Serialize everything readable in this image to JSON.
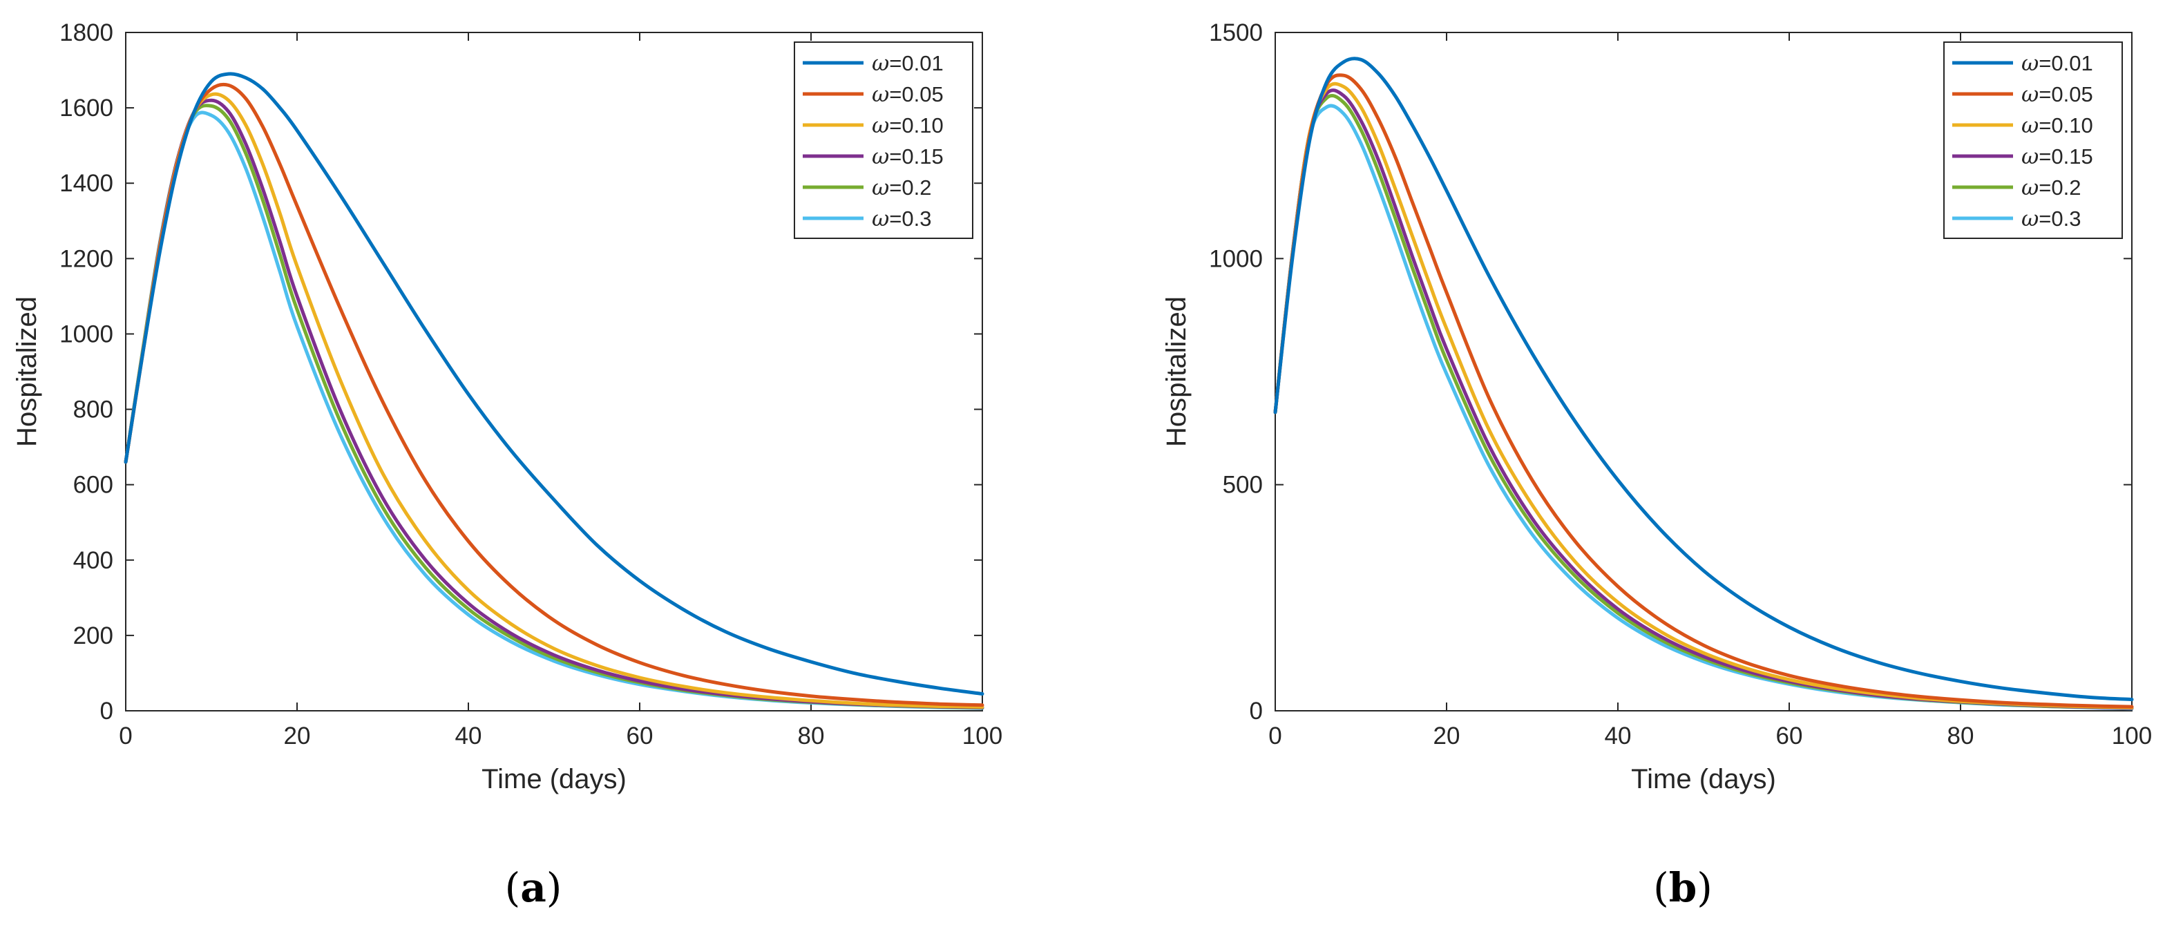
{
  "chart_data": [
    {
      "type": "line",
      "panel_label": "a",
      "xlabel": "Time (days)",
      "ylabel": "Hospitalized",
      "xlim": [
        0,
        100
      ],
      "ylim": [
        0,
        1800
      ],
      "xticks": [
        0,
        20,
        40,
        60,
        80,
        100
      ],
      "yticks": [
        0,
        200,
        400,
        600,
        800,
        1000,
        1200,
        1400,
        1600,
        1800
      ],
      "legend_position": "top-right",
      "x": [
        0,
        2,
        4,
        6,
        8,
        10,
        12,
        14,
        16,
        18,
        20,
        25,
        30,
        35,
        40,
        45,
        50,
        55,
        60,
        65,
        70,
        75,
        80,
        85,
        90,
        95,
        100
      ],
      "series": [
        {
          "name": "=0.01",
          "symbol": "ω",
          "color": "#0072BD",
          "values": [
            660,
            950,
            1220,
            1440,
            1590,
            1670,
            1690,
            1680,
            1650,
            1600,
            1540,
            1370,
            1190,
            1010,
            840,
            690,
            560,
            440,
            345,
            270,
            210,
            165,
            130,
            100,
            78,
            60,
            45
          ]
        },
        {
          "name": "=0.05",
          "symbol": "ω",
          "color": "#D95319",
          "values": [
            660,
            950,
            1230,
            1450,
            1590,
            1650,
            1660,
            1625,
            1550,
            1450,
            1340,
            1070,
            820,
            610,
            450,
            330,
            240,
            175,
            128,
            94,
            70,
            52,
            39,
            30,
            23,
            18,
            15
          ]
        },
        {
          "name": "=0.10",
          "symbol": "ω",
          "color": "#EDB120",
          "values": [
            660,
            955,
            1235,
            1455,
            1590,
            1635,
            1620,
            1555,
            1450,
            1320,
            1180,
            880,
            630,
            450,
            320,
            230,
            165,
            120,
            88,
            65,
            48,
            36,
            27,
            20,
            15,
            12,
            10
          ]
        },
        {
          "name": "=0.15",
          "symbol": "ω",
          "color": "#7E2F8E",
          "values": [
            660,
            955,
            1240,
            1460,
            1590,
            1620,
            1590,
            1505,
            1385,
            1245,
            1100,
            800,
            565,
            400,
            285,
            205,
            148,
            108,
            79,
            58,
            43,
            32,
            24,
            18,
            14,
            11,
            9
          ]
        },
        {
          "name": "=0.2",
          "symbol": "ω",
          "color": "#77AC30",
          "values": [
            660,
            958,
            1242,
            1460,
            1585,
            1605,
            1570,
            1480,
            1355,
            1210,
            1065,
            770,
            540,
            380,
            270,
            195,
            140,
            102,
            75,
            55,
            41,
            30,
            23,
            17,
            13,
            10,
            8
          ]
        },
        {
          "name": "=0.3",
          "symbol": "ω",
          "color": "#4DBEEE",
          "values": [
            660,
            960,
            1245,
            1460,
            1575,
            1580,
            1535,
            1440,
            1310,
            1165,
            1020,
            735,
            515,
            360,
            255,
            183,
            132,
            96,
            70,
            52,
            38,
            28,
            21,
            16,
            12,
            9,
            7
          ]
        }
      ]
    },
    {
      "type": "line",
      "panel_label": "b",
      "xlabel": "Time (days)",
      "ylabel": "Hospitalized",
      "xlim": [
        0,
        100
      ],
      "ylim": [
        0,
        1500
      ],
      "xticks": [
        0,
        20,
        40,
        60,
        80,
        100
      ],
      "yticks": [
        0,
        500,
        1000,
        1500
      ],
      "legend_position": "top-right",
      "x": [
        0,
        2,
        4,
        6,
        8,
        10,
        12,
        14,
        16,
        18,
        20,
        25,
        30,
        35,
        40,
        45,
        50,
        55,
        60,
        65,
        70,
        75,
        80,
        85,
        90,
        95,
        100
      ],
      "series": [
        {
          "name": "=0.01",
          "symbol": "ω",
          "color": "#0072BD",
          "values": [
            660,
            1000,
            1260,
            1390,
            1435,
            1440,
            1410,
            1360,
            1295,
            1225,
            1150,
            960,
            790,
            640,
            510,
            400,
            310,
            240,
            185,
            142,
            109,
            84,
            65,
            50,
            39,
            30,
            25
          ]
        },
        {
          "name": "=0.05",
          "symbol": "ω",
          "color": "#D95319",
          "values": [
            660,
            1005,
            1270,
            1385,
            1405,
            1375,
            1310,
            1225,
            1125,
            1025,
            925,
            690,
            510,
            375,
            275,
            200,
            145,
            106,
            78,
            58,
            43,
            32,
            24,
            18,
            14,
            11,
            9
          ]
        },
        {
          "name": "=0.10",
          "symbol": "ω",
          "color": "#EDB120",
          "values": [
            660,
            1008,
            1275,
            1375,
            1380,
            1335,
            1255,
            1155,
            1050,
            945,
            845,
            620,
            455,
            330,
            240,
            175,
            128,
            94,
            69,
            51,
            38,
            28,
            21,
            16,
            12,
            9,
            7
          ]
        },
        {
          "name": "=0.15",
          "symbol": "ω",
          "color": "#7E2F8E",
          "values": [
            660,
            1010,
            1275,
            1365,
            1360,
            1305,
            1220,
            1115,
            1005,
            900,
            800,
            585,
            425,
            310,
            225,
            164,
            120,
            88,
            65,
            48,
            35,
            26,
            20,
            15,
            11,
            8,
            6
          ]
        },
        {
          "name": "=0.2",
          "symbol": "ω",
          "color": "#77AC30",
          "values": [
            660,
            1010,
            1275,
            1355,
            1345,
            1285,
            1195,
            1090,
            980,
            875,
            775,
            565,
            410,
            298,
            216,
            157,
            115,
            84,
            62,
            46,
            34,
            25,
            19,
            14,
            10,
            8,
            6
          ]
        },
        {
          "name": "=0.3",
          "symbol": "ω",
          "color": "#4DBEEE",
          "values": [
            660,
            1012,
            1270,
            1335,
            1320,
            1255,
            1160,
            1055,
            945,
            840,
            745,
            540,
            390,
            283,
            205,
            149,
            109,
            80,
            59,
            43,
            32,
            24,
            18,
            13,
            10,
            7,
            5
          ]
        }
      ]
    }
  ]
}
